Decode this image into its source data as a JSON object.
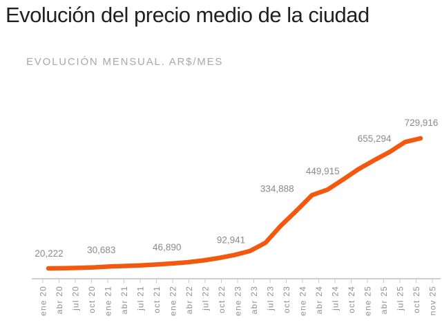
{
  "header": {
    "title": "Evolución del precio medio de la ciudad"
  },
  "chart": {
    "subtitle": "EVOLUCIÓN MENSUAL. AR$/MES"
  },
  "colors": {
    "line": "#F3590E",
    "title_text": "#231F20",
    "subtitle_text": "#A8A8A8",
    "data_label_text": "#8A8A8A",
    "axis_line": "#CFCFCF",
    "tick_mark": "#C8C8C8",
    "tick_label_text": "#8F8F8F",
    "background": "#FFFFFF"
  },
  "chart_data": {
    "type": "line",
    "title": "Evolución del precio medio de la ciudad",
    "subtitle": "EVOLUCIÓN MENSUAL. AR$/MES",
    "unit": "AR$/mes",
    "grid": false,
    "legend": false,
    "ylim": [
      0,
      800000
    ],
    "line_color": "#F3590E",
    "x": [
      "ene 20",
      "abr 20",
      "jul 20",
      "oct 20",
      "ene 21",
      "abr 21",
      "jul 21",
      "oct 21",
      "ene 22",
      "abr 22",
      "jul 22",
      "oct 22",
      "ene 23",
      "abr 23",
      "jul 23",
      "oct 23",
      "ene 24",
      "abr 24",
      "jul 24",
      "oct 24",
      "ene 25",
      "abr 25",
      "jul 25",
      "oct 25",
      "nov 25"
    ],
    "series": [
      {
        "name": "Precio medio de la ciudad",
        "values": [
          20222,
          21500,
          23200,
          25800,
          30683,
          33500,
          36800,
          41200,
          46890,
          54000,
          63500,
          77000,
          92941,
          115000,
          160000,
          254000,
          334888,
          420000,
          449915,
          505000,
          562000,
          610000,
          655294,
          710000,
          729916
        ]
      }
    ],
    "labeled_points": [
      {
        "x": "ene 20",
        "index": 0,
        "label": "20,222"
      },
      {
        "x": "ene 21",
        "index": 4,
        "label": "30,683"
      },
      {
        "x": "ene 22",
        "index": 8,
        "label": "46,890"
      },
      {
        "x": "ene 23",
        "index": 12,
        "label": "92,941"
      },
      {
        "x": "ene 24",
        "index": 16,
        "label": "334,888"
      },
      {
        "x": "jul 24",
        "index": 18,
        "label": "449,915"
      },
      {
        "x": "jul 25",
        "index": 22,
        "label": "655,294"
      },
      {
        "x": "nov 25",
        "index": 24,
        "label": "729,916"
      }
    ]
  }
}
